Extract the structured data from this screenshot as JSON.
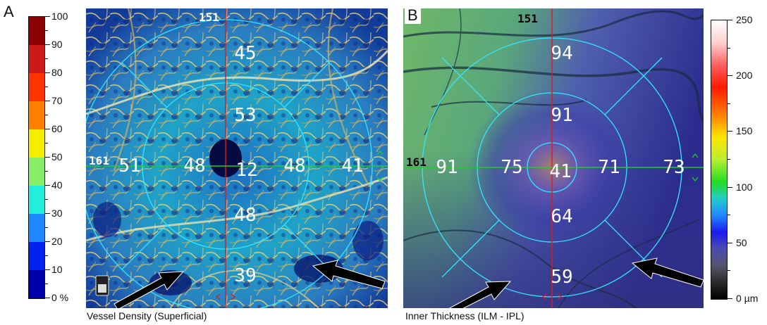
{
  "panel_a": {
    "letter": "A",
    "caption": "Vessel Density (Superficial)",
    "top_number": "151",
    "side_number": "161",
    "values": {
      "center": "12",
      "inner_superior": "53",
      "inner_nasal": "48",
      "inner_inferior": "48",
      "inner_temporal": "48",
      "outer_superior": "45",
      "outer_nasal": "51",
      "outer_inferior": "39",
      "outer_temporal": "41"
    },
    "scale": {
      "labels": [
        "100",
        "90",
        "80",
        "70",
        "60",
        "50",
        "40",
        "30",
        "20",
        "10",
        "0 %"
      ],
      "colors": [
        "#8b0000",
        "#cc1a1a",
        "#ff3300",
        "#ff8000",
        "#f5ee00",
        "#88ee66",
        "#22eedd",
        "#1e88ff",
        "#0022ee",
        "#0000aa"
      ]
    }
  },
  "panel_b": {
    "letter": "B",
    "caption": "Inner Thickness (ILM - IPL)",
    "top_number": "151",
    "side_number": "161",
    "values": {
      "center": "41",
      "inner_superior": "91",
      "inner_nasal": "75",
      "inner_inferior": "64",
      "inner_temporal": "71",
      "outer_superior": "94",
      "outer_nasal": "91",
      "outer_inferior": "59",
      "outer_temporal": "73"
    },
    "scale": {
      "labels": [
        "250",
        "200",
        "150",
        "100",
        "50",
        "0 µm"
      ]
    }
  },
  "colors": {
    "circle": "#33e6ff",
    "vertical_line": "#e01a1a",
    "horizontal_line": "#22cc22",
    "arrow": "#000000"
  }
}
